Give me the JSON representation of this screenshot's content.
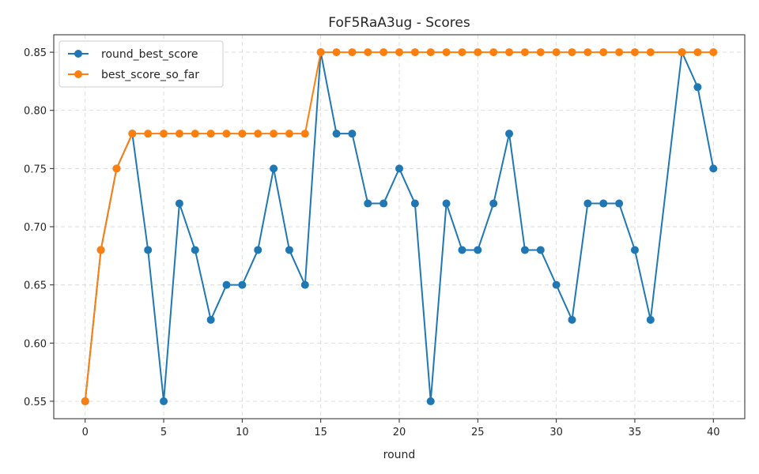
{
  "chart_data": {
    "type": "line",
    "title": "FoF5RaA3ug - Scores",
    "xlabel": "round",
    "ylabel": "",
    "xlim": [
      -2,
      42
    ],
    "ylim": [
      0.535,
      0.865
    ],
    "xticks": [
      0,
      5,
      10,
      15,
      20,
      25,
      30,
      35,
      40
    ],
    "xtick_labels": [
      "0",
      "5",
      "10",
      "15",
      "20",
      "25",
      "30",
      "35",
      "40"
    ],
    "yticks": [
      0.55,
      0.6,
      0.65,
      0.7,
      0.75,
      0.8,
      0.85
    ],
    "ytick_labels": [
      "0.55",
      "0.60",
      "0.65",
      "0.70",
      "0.75",
      "0.80",
      "0.85"
    ],
    "grid": true,
    "legend_position": "top-left",
    "x": [
      0,
      1,
      2,
      3,
      4,
      5,
      6,
      7,
      8,
      9,
      10,
      11,
      12,
      13,
      14,
      15,
      16,
      17,
      18,
      19,
      20,
      21,
      22,
      23,
      24,
      25,
      26,
      27,
      28,
      29,
      30,
      31,
      32,
      33,
      34,
      35,
      36,
      37,
      38,
      39,
      40
    ],
    "series": [
      {
        "name": "round_best_score",
        "color": "#1f77b4",
        "x": [
          0,
          1,
          2,
          3,
          4,
          5,
          6,
          7,
          8,
          9,
          10,
          11,
          12,
          13,
          14,
          15,
          16,
          17,
          18,
          19,
          20,
          21,
          22,
          23,
          24,
          25,
          26,
          27,
          28,
          29,
          30,
          31,
          32,
          33,
          34,
          35,
          36,
          38,
          39,
          40
        ],
        "values": [
          0.55,
          0.68,
          0.75,
          0.78,
          0.68,
          0.55,
          0.72,
          0.68,
          0.62,
          0.65,
          0.65,
          0.68,
          0.75,
          0.68,
          0.65,
          0.85,
          0.78,
          0.78,
          0.72,
          0.72,
          0.75,
          0.72,
          0.55,
          0.72,
          0.68,
          0.68,
          0.72,
          0.78,
          0.68,
          0.68,
          0.65,
          0.62,
          0.72,
          0.72,
          0.72,
          0.68,
          0.62,
          0.85,
          0.82,
          0.75
        ]
      },
      {
        "name": "best_score_so_far",
        "color": "#ff7f0e",
        "x": [
          0,
          1,
          2,
          3,
          4,
          5,
          6,
          7,
          8,
          9,
          10,
          11,
          12,
          13,
          14,
          15,
          16,
          17,
          18,
          19,
          20,
          21,
          22,
          23,
          24,
          25,
          26,
          27,
          28,
          29,
          30,
          31,
          32,
          33,
          34,
          35,
          36,
          38,
          39,
          40
        ],
        "values": [
          0.55,
          0.68,
          0.75,
          0.78,
          0.78,
          0.78,
          0.78,
          0.78,
          0.78,
          0.78,
          0.78,
          0.78,
          0.78,
          0.78,
          0.78,
          0.85,
          0.85,
          0.85,
          0.85,
          0.85,
          0.85,
          0.85,
          0.85,
          0.85,
          0.85,
          0.85,
          0.85,
          0.85,
          0.85,
          0.85,
          0.85,
          0.85,
          0.85,
          0.85,
          0.85,
          0.85,
          0.85,
          0.85,
          0.85,
          0.85
        ]
      }
    ]
  }
}
